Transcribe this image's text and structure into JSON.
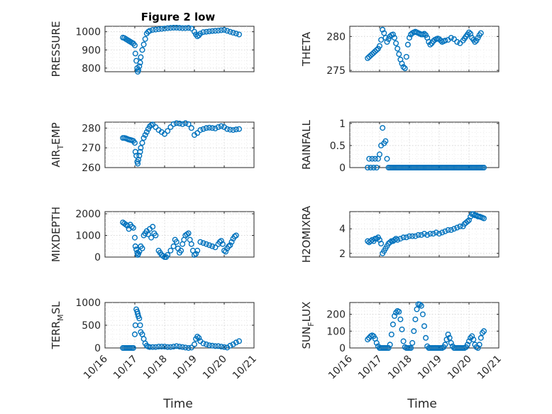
{
  "figure": {
    "title": "Figure 2 low",
    "xlabel": "Time"
  },
  "colors": {
    "marker": "#0072BD",
    "axis": "#262626",
    "grid": "#cfcfcf",
    "background": "#ffffff"
  },
  "chart_data": [
    {
      "type": "scatter",
      "ylabel": "PRESSURE",
      "ylim": [
        780,
        1030
      ],
      "yticks": [
        800,
        900,
        1000
      ],
      "ytick_labels": [
        "800",
        "900",
        "1000"
      ],
      "xlim": [
        0,
        5
      ],
      "x_tick_labels": [
        "10/16",
        "10/17",
        "10/18",
        "10/19",
        "10/20",
        "10/21"
      ],
      "show_xtick_labels": false,
      "x": [
        0.6,
        0.65,
        0.7,
        0.75,
        0.8,
        0.85,
        0.9,
        0.95,
        1.0,
        1.02,
        1.05,
        1.08,
        1.1,
        1.12,
        1.15,
        1.18,
        1.2,
        1.25,
        1.3,
        1.35,
        1.4,
        1.45,
        1.5,
        1.6,
        1.7,
        1.8,
        1.9,
        2.0,
        2.1,
        2.2,
        2.3,
        2.4,
        2.5,
        2.6,
        2.7,
        2.8,
        2.9,
        3.0,
        3.05,
        3.1,
        3.15,
        3.2,
        3.3,
        3.4,
        3.5,
        3.6,
        3.7,
        3.8,
        3.9,
        4.0,
        4.1,
        4.2,
        4.3,
        4.4,
        4.5
      ],
      "y": [
        968,
        965,
        960,
        955,
        950,
        945,
        940,
        935,
        925,
        880,
        840,
        800,
        780,
        790,
        810,
        830,
        860,
        900,
        930,
        960,
        990,
        1000,
        1005,
        1010,
        1012,
        1014,
        1016,
        1018,
        1020,
        1021,
        1022,
        1022,
        1021,
        1020,
        1020,
        1021,
        1018,
        1000,
        985,
        975,
        980,
        990,
        998,
        1000,
        1002,
        1004,
        1005,
        1006,
        1008,
        1010,
        1005,
        1000,
        995,
        990,
        985
      ]
    },
    {
      "type": "scatter",
      "ylabel": "THETA",
      "ylim": [
        274.8,
        281.5
      ],
      "yticks": [
        275,
        280
      ],
      "ytick_labels": [
        "275",
        "280"
      ],
      "xlim": [
        0,
        5
      ],
      "x_tick_labels": [
        "10/16",
        "10/17",
        "10/18",
        "10/19",
        "10/20",
        "10/21"
      ],
      "show_xtick_labels": false,
      "x": [
        0.6,
        0.65,
        0.7,
        0.75,
        0.8,
        0.85,
        0.9,
        0.95,
        1.0,
        1.05,
        1.1,
        1.15,
        1.2,
        1.25,
        1.3,
        1.35,
        1.4,
        1.45,
        1.5,
        1.55,
        1.6,
        1.65,
        1.7,
        1.75,
        1.8,
        1.85,
        1.9,
        1.95,
        2.0,
        2.05,
        2.1,
        2.15,
        2.2,
        2.25,
        2.3,
        2.35,
        2.4,
        2.45,
        2.5,
        2.55,
        2.6,
        2.65,
        2.7,
        2.75,
        2.8,
        2.85,
        2.9,
        2.95,
        3.0,
        3.05,
        3.1,
        3.15,
        3.2,
        3.3,
        3.4,
        3.5,
        3.6,
        3.7,
        3.8,
        3.85,
        3.9,
        3.95,
        4.0,
        4.05,
        4.1,
        4.15,
        4.2,
        4.25,
        4.3,
        4.35,
        4.4
      ],
      "y": [
        276.8,
        277.0,
        277.2,
        277.4,
        277.6,
        277.8,
        278.0,
        278.2,
        278.6,
        279.5,
        281.0,
        280.5,
        279.8,
        279.2,
        279.6,
        280.0,
        280.2,
        280.3,
        279.8,
        279.0,
        278.2,
        277.4,
        276.6,
        276.0,
        275.5,
        275.3,
        277.0,
        278.8,
        279.8,
        280.3,
        280.5,
        280.6,
        280.7,
        280.6,
        280.5,
        280.4,
        280.3,
        280.3,
        280.4,
        280.2,
        279.8,
        279.2,
        278.8,
        279.0,
        279.3,
        279.5,
        279.6,
        279.7,
        279.6,
        279.4,
        279.2,
        279.3,
        279.4,
        279.5,
        279.8,
        279.6,
        279.2,
        279.0,
        279.4,
        279.7,
        280.0,
        280.3,
        280.6,
        280.4,
        279.8,
        279.5,
        279.2,
        279.4,
        279.8,
        280.2,
        280.5
      ]
    },
    {
      "type": "scatter",
      "ylabel": "AIR_TEMP",
      "ylabel_main_1": "AIR",
      "ylabel_sub": "T",
      "ylabel_main_2": "EMP",
      "ylim": [
        260,
        283
      ],
      "yticks": [
        260,
        270,
        280
      ],
      "ytick_labels": [
        "260",
        "270",
        "280"
      ],
      "xlim": [
        0,
        5
      ],
      "x_tick_labels": [
        "10/16",
        "10/17",
        "10/18",
        "10/19",
        "10/20",
        "10/21"
      ],
      "show_xtick_labels": false,
      "x": [
        0.6,
        0.65,
        0.7,
        0.75,
        0.8,
        0.85,
        0.9,
        0.95,
        1.0,
        1.02,
        1.05,
        1.08,
        1.1,
        1.12,
        1.15,
        1.18,
        1.2,
        1.25,
        1.3,
        1.35,
        1.4,
        1.45,
        1.5,
        1.55,
        1.6,
        1.7,
        1.8,
        1.9,
        2.0,
        2.1,
        2.2,
        2.3,
        2.4,
        2.5,
        2.6,
        2.7,
        2.8,
        2.9,
        3.0,
        3.1,
        3.2,
        3.3,
        3.4,
        3.5,
        3.6,
        3.7,
        3.8,
        3.9,
        4.0,
        4.1,
        4.2,
        4.3,
        4.4,
        4.5
      ],
      "y": [
        275,
        275,
        274.8,
        274.5,
        274.2,
        274,
        273.8,
        273.5,
        272.5,
        268,
        266,
        263,
        262,
        264,
        266,
        268,
        270,
        272.5,
        275,
        276.5,
        278,
        279.5,
        280.8,
        281.5,
        281.8,
        280.5,
        279,
        278,
        277,
        278.5,
        280.5,
        282,
        282.5,
        282.3,
        282,
        282.5,
        282,
        280,
        276.5,
        277.5,
        279,
        279.5,
        280,
        280.2,
        280,
        279.8,
        280.5,
        281,
        280.5,
        279.5,
        279.2,
        279,
        279.3,
        279.5
      ]
    },
    {
      "type": "scatter",
      "ylabel": "RAINFALL",
      "ylim": [
        0,
        1.03
      ],
      "yticks": [
        0,
        0.5,
        1
      ],
      "ytick_labels": [
        "0",
        "0.5",
        "1"
      ],
      "xlim": [
        0,
        5
      ],
      "x_tick_labels": [
        "10/16",
        "10/17",
        "10/18",
        "10/19",
        "10/20",
        "10/21"
      ],
      "show_xtick_labels": false,
      "x": [
        0.6,
        0.65,
        0.7,
        0.75,
        0.8,
        0.85,
        0.9,
        0.95,
        1.0,
        1.05,
        1.1,
        1.15,
        1.2,
        1.25,
        1.3,
        1.35,
        1.4,
        1.45,
        1.5,
        1.55,
        1.6,
        1.65,
        1.7,
        1.75,
        1.8,
        1.85,
        1.9,
        1.95,
        2.0,
        2.05,
        2.1,
        2.15,
        2.2,
        2.25,
        2.3,
        2.35,
        2.4,
        2.45,
        2.5,
        2.55,
        2.6,
        2.65,
        2.7,
        2.75,
        2.8,
        2.85,
        2.9,
        2.95,
        3.0,
        3.05,
        3.1,
        3.15,
        3.2,
        3.25,
        3.3,
        3.35,
        3.4,
        3.45,
        3.5,
        3.55,
        3.6,
        3.65,
        3.7,
        3.75,
        3.8,
        3.85,
        3.9,
        3.95,
        4.0,
        4.05,
        4.1,
        4.15,
        4.2,
        4.25,
        4.3,
        4.35,
        4.4,
        4.45,
        4.5
      ],
      "y": [
        0.0,
        0.2,
        0.0,
        0.2,
        0.0,
        0.2,
        0.0,
        0.2,
        0.3,
        0.5,
        0.9,
        0.55,
        0.6,
        0.2,
        0.0,
        0.0,
        0.0,
        0.0,
        0.0,
        0.0,
        0.0,
        0.0,
        0.0,
        0.0,
        0.0,
        0.0,
        0.0,
        0.0,
        0.0,
        0.0,
        0.0,
        0.0,
        0.0,
        0.0,
        0.0,
        0.0,
        0.0,
        0.0,
        0.0,
        0.0,
        0.0,
        0.0,
        0.0,
        0.0,
        0.0,
        0.0,
        0.0,
        0.0,
        0.0,
        0.0,
        0.0,
        0.0,
        0.0,
        0.0,
        0.0,
        0.0,
        0.0,
        0.0,
        0.0,
        0.0,
        0.0,
        0.0,
        0.0,
        0.0,
        0.0,
        0.0,
        0.0,
        0.0,
        0.0,
        0.0,
        0.0,
        0.0,
        0.0,
        0.0,
        0.0,
        0.0,
        0.0,
        0.0,
        0.0
      ]
    },
    {
      "type": "scatter",
      "ylabel": "MIXDEPTH",
      "ylim": [
        0,
        2100
      ],
      "yticks": [
        0,
        1000,
        2000
      ],
      "ytick_labels": [
        "0",
        "1000",
        "2000"
      ],
      "xlim": [
        0,
        5
      ],
      "x_tick_labels": [
        "10/16",
        "10/17",
        "10/18",
        "10/19",
        "10/20",
        "10/21"
      ],
      "show_xtick_labels": false,
      "x": [
        0.6,
        0.65,
        0.7,
        0.75,
        0.8,
        0.85,
        0.9,
        0.95,
        1.0,
        1.02,
        1.05,
        1.08,
        1.1,
        1.12,
        1.15,
        1.2,
        1.25,
        1.3,
        1.35,
        1.4,
        1.45,
        1.5,
        1.55,
        1.6,
        1.65,
        1.7,
        1.8,
        1.85,
        1.9,
        1.95,
        2.0,
        2.05,
        2.1,
        2.2,
        2.3,
        2.35,
        2.4,
        2.45,
        2.5,
        2.55,
        2.6,
        2.65,
        2.7,
        2.75,
        2.8,
        2.85,
        2.9,
        2.95,
        3.0,
        3.05,
        3.1,
        3.2,
        3.3,
        3.4,
        3.5,
        3.6,
        3.7,
        3.8,
        3.85,
        3.9,
        3.95,
        4.0,
        4.05,
        4.1,
        4.15,
        4.2,
        4.25,
        4.3,
        4.35,
        4.4
      ],
      "y": [
        1600,
        1550,
        1500,
        1450,
        1300,
        1500,
        1400,
        1350,
        900,
        500,
        350,
        200,
        100,
        150,
        250,
        500,
        400,
        1000,
        1100,
        1200,
        1050,
        1300,
        900,
        1400,
        1100,
        1000,
        300,
        200,
        100,
        50,
        0,
        0,
        100,
        300,
        500,
        800,
        700,
        400,
        200,
        300,
        600,
        800,
        1000,
        1050,
        1100,
        800,
        600,
        300,
        100,
        150,
        300,
        700,
        650,
        600,
        550,
        500,
        450,
        600,
        700,
        750,
        600,
        300,
        250,
        400,
        500,
        550,
        700,
        850,
        950,
        1000
      ]
    },
    {
      "type": "scatter",
      "ylabel": "H2OMIXRA",
      "ylim": [
        1.7,
        5.4
      ],
      "yticks": [
        2,
        4
      ],
      "ytick_labels": [
        "2",
        "4"
      ],
      "xlim": [
        0,
        5
      ],
      "x_tick_labels": [
        "10/16",
        "10/17",
        "10/18",
        "10/19",
        "10/20",
        "10/21"
      ],
      "show_xtick_labels": false,
      "x": [
        0.6,
        0.65,
        0.7,
        0.75,
        0.8,
        0.85,
        0.9,
        0.95,
        1.0,
        1.05,
        1.1,
        1.15,
        1.2,
        1.25,
        1.3,
        1.35,
        1.4,
        1.45,
        1.5,
        1.55,
        1.6,
        1.7,
        1.8,
        1.9,
        2.0,
        2.1,
        2.2,
        2.3,
        2.4,
        2.5,
        2.6,
        2.7,
        2.8,
        2.9,
        3.0,
        3.1,
        3.2,
        3.3,
        3.4,
        3.5,
        3.6,
        3.7,
        3.8,
        3.85,
        3.9,
        3.95,
        4.0,
        4.05,
        4.1,
        4.15,
        4.2,
        4.25,
        4.3,
        4.35,
        4.4,
        4.45,
        4.5
      ],
      "y": [
        3.0,
        2.9,
        3.0,
        3.1,
        3.0,
        3.2,
        3.2,
        3.3,
        3.1,
        2.8,
        2.0,
        2.2,
        2.4,
        2.6,
        2.8,
        2.9,
        3.0,
        3.0,
        3.1,
        3.2,
        3.1,
        3.2,
        3.3,
        3.3,
        3.4,
        3.4,
        3.4,
        3.5,
        3.5,
        3.6,
        3.5,
        3.6,
        3.6,
        3.7,
        3.6,
        3.7,
        3.8,
        3.9,
        3.9,
        4.0,
        4.1,
        4.2,
        4.2,
        4.4,
        4.5,
        4.6,
        4.7,
        5.0,
        5.2,
        5.2,
        5.1,
        5.1,
        5.0,
        5.0,
        4.95,
        4.9,
        4.85
      ]
    },
    {
      "type": "scatter",
      "ylabel": "TERR_MSL",
      "ylabel_main_1": "TERR",
      "ylabel_sub": "M",
      "ylabel_main_2": "SL",
      "ylim": [
        0,
        1000
      ],
      "yticks": [
        0,
        500,
        1000
      ],
      "ytick_labels": [
        "0",
        "500",
        "1000"
      ],
      "xlim": [
        0,
        5
      ],
      "x_tick_labels": [
        "10/16",
        "10/17",
        "10/18",
        "10/19",
        "10/20",
        "10/21"
      ],
      "show_xtick_labels": true,
      "x": [
        0.6,
        0.65,
        0.7,
        0.75,
        0.8,
        0.85,
        0.9,
        0.95,
        1.0,
        1.02,
        1.05,
        1.08,
        1.1,
        1.12,
        1.15,
        1.18,
        1.2,
        1.25,
        1.3,
        1.35,
        1.4,
        1.45,
        1.5,
        1.6,
        1.7,
        1.8,
        1.9,
        2.0,
        2.1,
        2.2,
        2.3,
        2.4,
        2.5,
        2.6,
        2.7,
        2.8,
        2.9,
        3.0,
        3.05,
        3.1,
        3.15,
        3.2,
        3.3,
        3.4,
        3.5,
        3.6,
        3.7,
        3.8,
        3.9,
        4.0,
        4.1,
        4.2,
        4.3,
        4.4,
        4.5
      ],
      "y": [
        0,
        0,
        0,
        0,
        0,
        0,
        0,
        0,
        300,
        500,
        850,
        800,
        750,
        700,
        650,
        500,
        350,
        300,
        200,
        100,
        50,
        30,
        20,
        20,
        20,
        30,
        30,
        30,
        20,
        20,
        30,
        40,
        30,
        20,
        10,
        0,
        10,
        80,
        200,
        250,
        220,
        150,
        100,
        80,
        60,
        50,
        40,
        40,
        30,
        20,
        10,
        50,
        80,
        120,
        150
      ]
    },
    {
      "type": "scatter",
      "ylabel": "SUN_FLUX",
      "ylabel_main_1": "SUN",
      "ylabel_sub": "F",
      "ylabel_main_2": "LUX",
      "ylim": [
        0,
        270
      ],
      "yticks": [
        0,
        100,
        200
      ],
      "ytick_labels": [
        "0",
        "100",
        "200"
      ],
      "xlim": [
        0,
        5
      ],
      "x_tick_labels": [
        "10/16",
        "10/17",
        "10/18",
        "10/19",
        "10/20",
        "10/21"
      ],
      "show_xtick_labels": true,
      "x": [
        0.6,
        0.65,
        0.7,
        0.75,
        0.8,
        0.85,
        0.9,
        0.95,
        1.0,
        1.05,
        1.1,
        1.15,
        1.2,
        1.25,
        1.3,
        1.35,
        1.4,
        1.45,
        1.5,
        1.55,
        1.6,
        1.65,
        1.7,
        1.75,
        1.8,
        1.85,
        1.9,
        1.95,
        2.0,
        2.05,
        2.1,
        2.15,
        2.2,
        2.25,
        2.3,
        2.35,
        2.4,
        2.45,
        2.5,
        2.55,
        2.6,
        2.65,
        2.7,
        2.75,
        2.8,
        2.85,
        2.9,
        2.95,
        3.0,
        3.05,
        3.1,
        3.15,
        3.2,
        3.25,
        3.3,
        3.35,
        3.4,
        3.45,
        3.5,
        3.55,
        3.6,
        3.65,
        3.7,
        3.75,
        3.8,
        3.85,
        3.9,
        3.95,
        4.0,
        4.05,
        4.1,
        4.15,
        4.2,
        4.25,
        4.3,
        4.35,
        4.4,
        4.45,
        4.5
      ],
      "y": [
        50,
        60,
        70,
        75,
        70,
        55,
        30,
        10,
        0,
        0,
        0,
        0,
        0,
        0,
        0,
        20,
        80,
        140,
        190,
        210,
        220,
        215,
        170,
        110,
        40,
        5,
        0,
        0,
        0,
        0,
        30,
        100,
        170,
        230,
        260,
        258,
        250,
        200,
        130,
        60,
        10,
        0,
        0,
        0,
        0,
        0,
        0,
        0,
        0,
        0,
        0,
        5,
        20,
        50,
        80,
        60,
        30,
        10,
        0,
        0,
        0,
        0,
        0,
        0,
        0,
        0,
        5,
        20,
        40,
        60,
        70,
        50,
        20,
        5,
        0,
        20,
        60,
        90,
        100
      ]
    }
  ]
}
